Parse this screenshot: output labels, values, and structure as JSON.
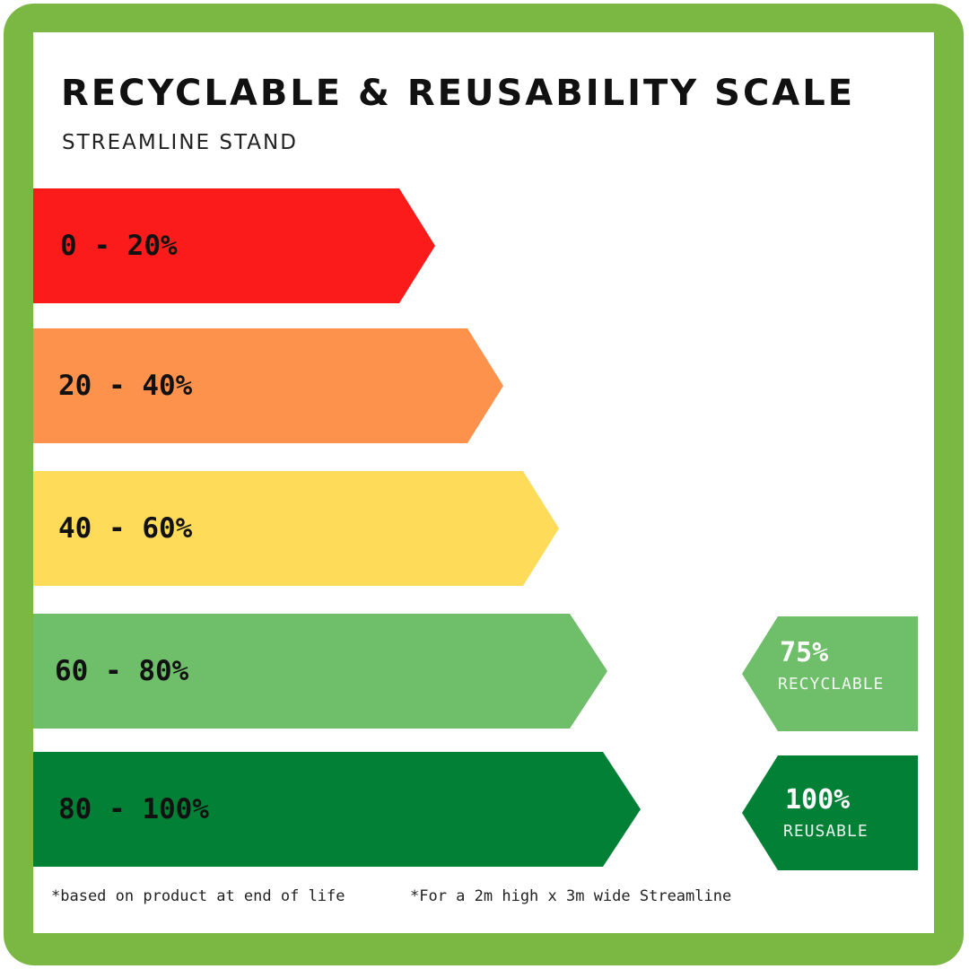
{
  "title": "RECYCLABLE & REUSABILITY SCALE",
  "subtitle": "STREAMLINE STAND",
  "scale": [
    {
      "label": "0 - 20%",
      "color": "#fc1b1b"
    },
    {
      "label": "20 - 40%",
      "color": "#fd924d"
    },
    {
      "label": "40 - 60%",
      "color": "#fedc5a"
    },
    {
      "label": "60 - 80%",
      "color": "#6ebe6a"
    },
    {
      "label": "80 - 100%",
      "color": "#028136"
    }
  ],
  "ratings": {
    "recyclable": {
      "value": "75%",
      "label": "RECYCLABLE",
      "color": "#6ebe6a"
    },
    "reusable": {
      "value": "100%",
      "label": "REUSABLE",
      "color": "#028136"
    }
  },
  "footnotes": {
    "left": "*based on product at end of life",
    "right": "*For a 2m high x 3m wide Streamline"
  },
  "frame_color": "#7ab843"
}
